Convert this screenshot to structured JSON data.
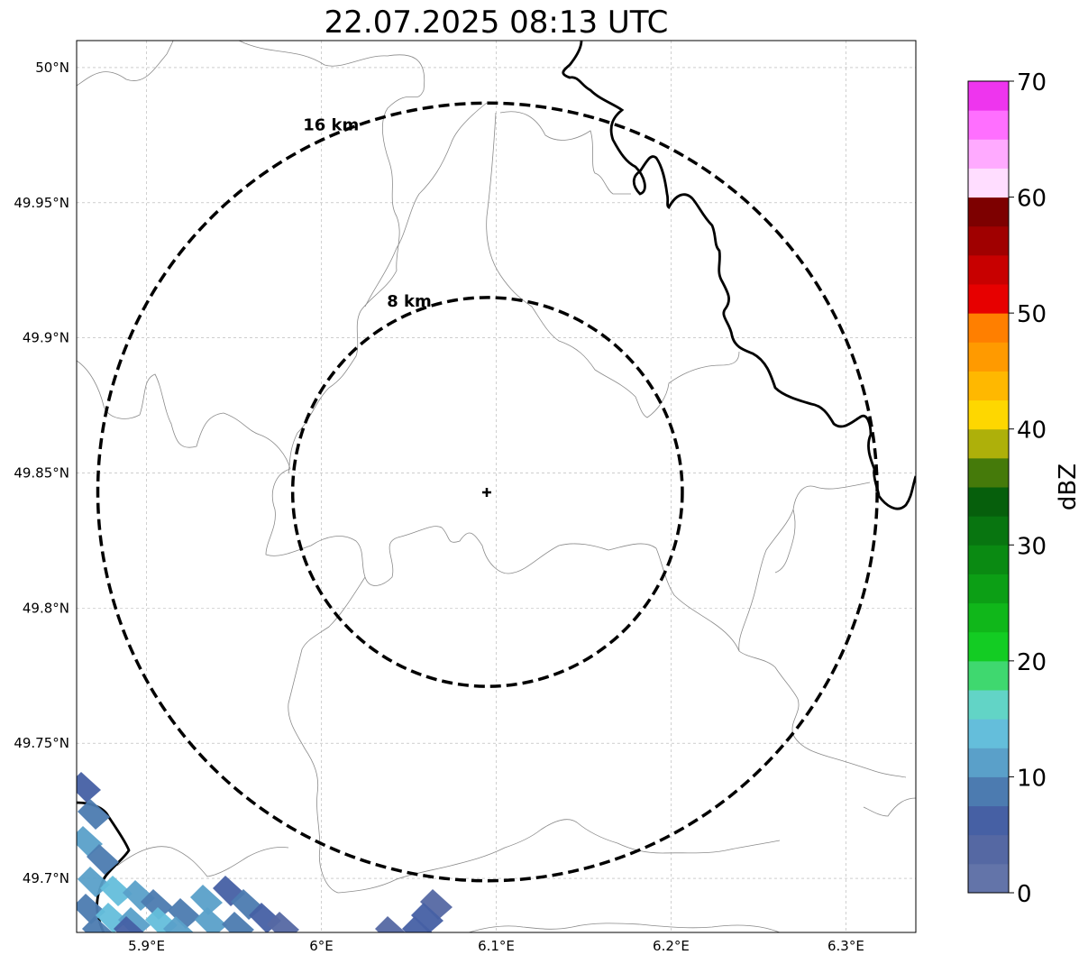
{
  "title": "22.07.2025 08:13 UTC",
  "map": {
    "lon_range": [
      5.86,
      6.34
    ],
    "lat_range": [
      49.68,
      50.01
    ],
    "x_ticks": [
      {
        "value": 5.9,
        "label": "5.9°E"
      },
      {
        "value": 6.0,
        "label": "6°E"
      },
      {
        "value": 6.1,
        "label": "6.1°E"
      },
      {
        "value": 6.2,
        "label": "6.2°E"
      },
      {
        "value": 6.3,
        "label": "6.3°E"
      }
    ],
    "y_ticks": [
      {
        "value": 50.0,
        "label": "50°N"
      },
      {
        "value": 49.95,
        "label": "49.95°N"
      },
      {
        "value": 49.9,
        "label": "49.9°N"
      },
      {
        "value": 49.85,
        "label": "49.85°N"
      },
      {
        "value": 49.8,
        "label": "49.8°N"
      },
      {
        "value": 49.75,
        "label": "49.75°N"
      },
      {
        "value": 49.7,
        "label": "49.7°N"
      }
    ],
    "grid": true,
    "radar_site": {
      "lon": 6.095,
      "lat": 49.843
    },
    "range_rings": [
      {
        "radius_km": 8,
        "label": "8 km"
      },
      {
        "radius_km": 16,
        "label": "16 km"
      }
    ]
  },
  "colorbar": {
    "label": "dBZ",
    "min": 0,
    "max": 70,
    "step": 2.5,
    "tick_values": [
      0,
      10,
      20,
      30,
      40,
      50,
      60,
      70
    ],
    "tick_labels": [
      "0",
      "10",
      "20",
      "30",
      "40",
      "50",
      "60",
      "70"
    ],
    "colors": [
      "#6374a9",
      "#5568a3",
      "#4660a4",
      "#4c7bb0",
      "#5aa0c9",
      "#64bedb",
      "#62d4c6",
      "#3fd86f",
      "#13cc23",
      "#10b71a",
      "#0c9f15",
      "#0a8a12",
      "#087510",
      "#065f0c",
      "#457a0a",
      "#aeb00a",
      "#fed700",
      "#ffb800",
      "#ff9a00",
      "#ff7f00",
      "#e70000",
      "#c80000",
      "#a00000",
      "#7d0000",
      "#ffddff",
      "#ffaaff",
      "#ff6fff",
      "#ee35ee"
    ]
  }
}
